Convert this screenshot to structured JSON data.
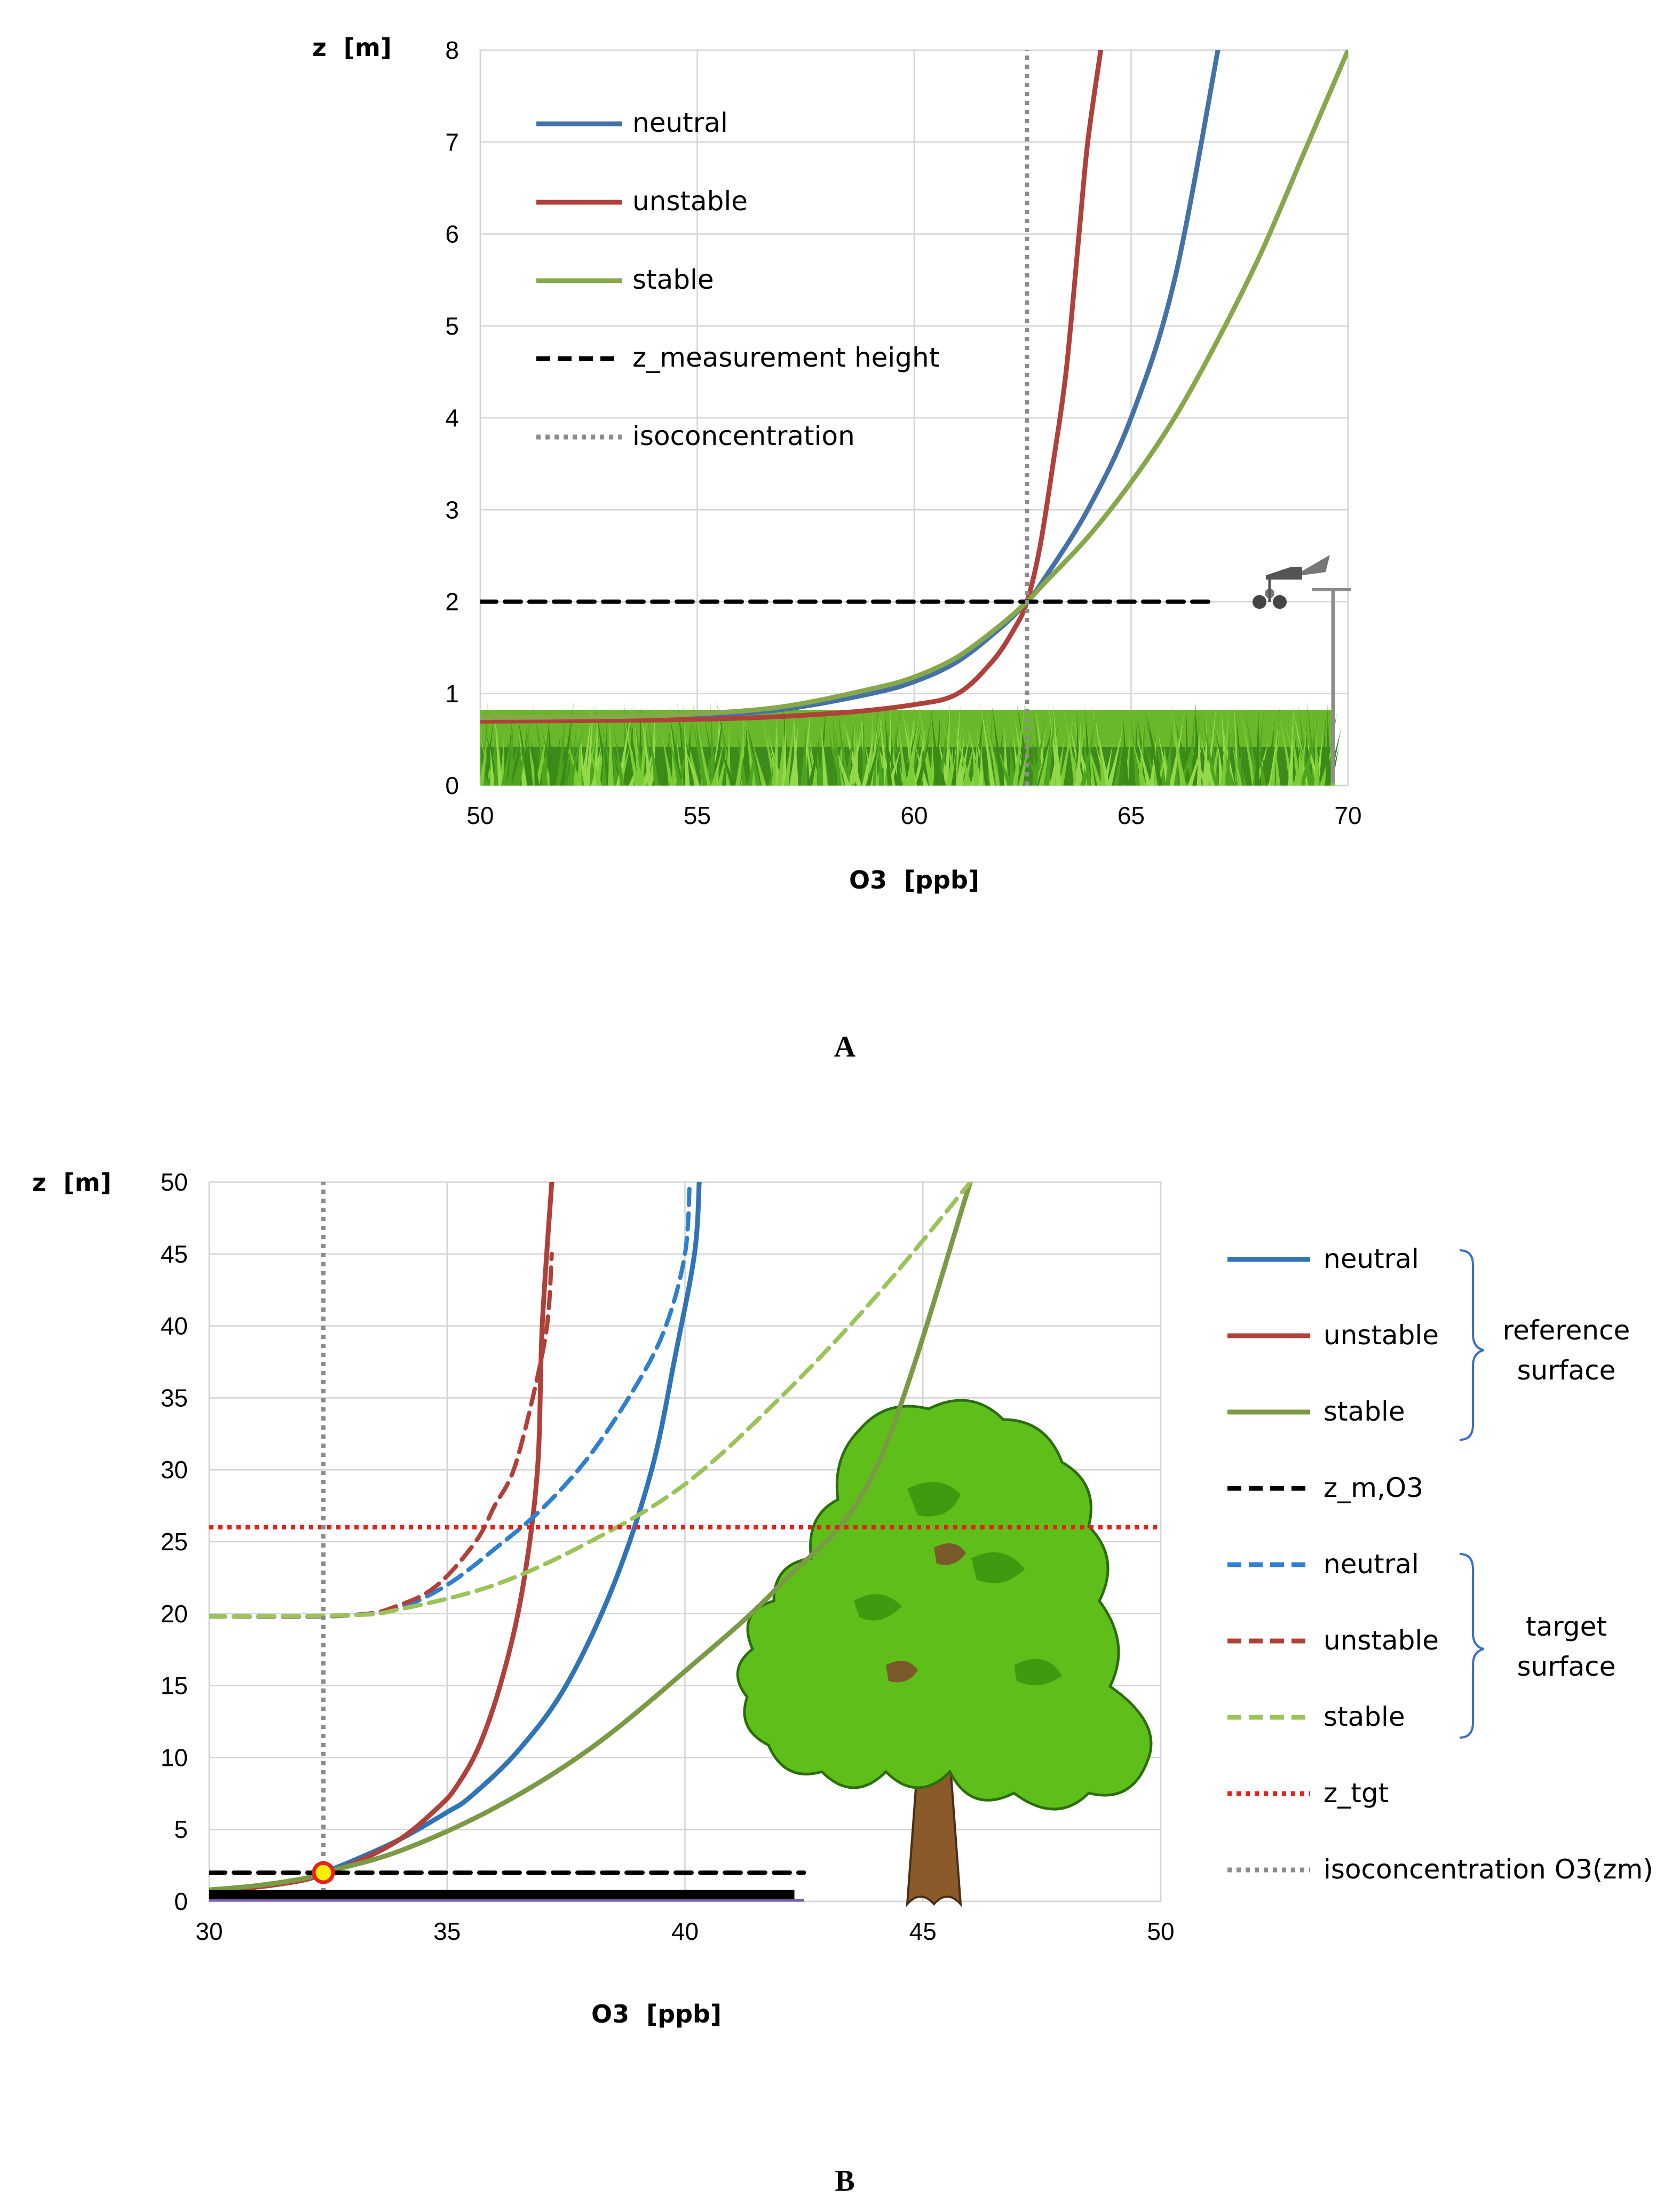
{
  "chart_data": [
    {
      "panel": "A",
      "type": "line",
      "xlabel": "O3  [ppb]",
      "ylabel": "z  [m]",
      "xlim": [
        50,
        70
      ],
      "ylim": [
        0,
        8
      ],
      "xticks": [
        "50",
        "55",
        "60",
        "65",
        "70"
      ],
      "yticks": [
        "0",
        "1",
        "2",
        "3",
        "4",
        "5",
        "6",
        "7",
        "8"
      ],
      "colors": {
        "neutral": "#4472a8",
        "unstable": "#b0403a",
        "stable": "#86a84a",
        "measurement": "#000000",
        "iso": "#8c8c8c"
      },
      "series": [
        {
          "name": "neutral",
          "style": "solid",
          "points": [
            [
              50,
              0.72
            ],
            [
              53,
              0.73
            ],
            [
              55,
              0.76
            ],
            [
              57,
              0.83
            ],
            [
              59,
              1.0
            ],
            [
              60,
              1.13
            ],
            [
              61,
              1.35
            ],
            [
              62,
              1.72
            ],
            [
              62.6,
              2.0
            ],
            [
              63,
              2.25
            ],
            [
              64,
              3.0
            ],
            [
              65,
              4.0
            ],
            [
              66,
              5.5
            ],
            [
              67,
              8.0
            ]
          ]
        },
        {
          "name": "unstable",
          "style": "solid",
          "points": [
            [
              50,
              0.7
            ],
            [
              55,
              0.72
            ],
            [
              58,
              0.78
            ],
            [
              60,
              0.88
            ],
            [
              61,
              1.0
            ],
            [
              61.8,
              1.35
            ],
            [
              62.3,
              1.7
            ],
            [
              62.6,
              2.0
            ],
            [
              62.9,
              2.6
            ],
            [
              63.2,
              3.5
            ],
            [
              63.5,
              4.5
            ],
            [
              63.8,
              6.0
            ],
            [
              64.0,
              7.0
            ],
            [
              64.3,
              8.0
            ]
          ]
        },
        {
          "name": "stable",
          "style": "solid",
          "points": [
            [
              50,
              0.74
            ],
            [
              53,
              0.75
            ],
            [
              55,
              0.78
            ],
            [
              57,
              0.86
            ],
            [
              59,
              1.05
            ],
            [
              60,
              1.18
            ],
            [
              61,
              1.4
            ],
            [
              62,
              1.75
            ],
            [
              62.6,
              2.0
            ],
            [
              63,
              2.2
            ],
            [
              64,
              2.7
            ],
            [
              65,
              3.3
            ],
            [
              66,
              4.0
            ],
            [
              67,
              4.85
            ],
            [
              68,
              5.8
            ],
            [
              69,
              6.9
            ],
            [
              70,
              8.0
            ]
          ]
        },
        {
          "name": "z_measurement height",
          "style": "dashed",
          "points": [
            [
              50,
              2
            ],
            [
              66.8,
              2
            ]
          ]
        },
        {
          "name": "isoconcentration",
          "style": "dotted",
          "points": [
            [
              62.6,
              0
            ],
            [
              62.6,
              8
            ]
          ]
        }
      ],
      "legend": [
        "neutral",
        "unstable",
        "stable",
        "z_measurement height",
        "isoconcentration"
      ]
    },
    {
      "panel": "B",
      "type": "line",
      "xlabel": "O3  [ppb]",
      "ylabel": "z  [m]",
      "xlim": [
        30,
        50
      ],
      "ylim": [
        0,
        50
      ],
      "xticks": [
        "30",
        "35",
        "40",
        "45",
        "50"
      ],
      "yticks": [
        "0",
        "5",
        "10",
        "15",
        "20",
        "25",
        "30",
        "35",
        "40",
        "45",
        "50"
      ],
      "colors": {
        "neutral_ref": "#2f74b5",
        "unstable_ref": "#b0403a",
        "stable_ref": "#7a9a45",
        "neutral_tgt": "#2f7fd0",
        "unstable_tgt": "#b0403a",
        "stable_tgt": "#9bc35a",
        "zm": "#000000",
        "ztgt": "#e8201a",
        "iso": "#8c8c8c",
        "marker_fill": "#ffee00",
        "marker_edge": "#e8201a"
      },
      "series": [
        {
          "name": "neutral",
          "group": "reference surface",
          "style": "solid",
          "points": [
            [
              30,
              0.8
            ],
            [
              31,
              1.0
            ],
            [
              32,
              1.5
            ],
            [
              32.4,
              2.0
            ],
            [
              33,
              2.8
            ],
            [
              34,
              4.3
            ],
            [
              35,
              6.2
            ],
            [
              35.5,
              7.3
            ],
            [
              36.5,
              10.5
            ],
            [
              37.5,
              15
            ],
            [
              38.5,
              22
            ],
            [
              39.3,
              30
            ],
            [
              39.8,
              38
            ],
            [
              40.2,
              45
            ],
            [
              40.3,
              50
            ]
          ]
        },
        {
          "name": "unstable",
          "group": "reference surface",
          "style": "solid",
          "points": [
            [
              30,
              0.8
            ],
            [
              31,
              1.0
            ],
            [
              32,
              1.5
            ],
            [
              32.4,
              2.0
            ],
            [
              33,
              2.6
            ],
            [
              34,
              4.3
            ],
            [
              34.8,
              6.5
            ],
            [
              35.2,
              8.0
            ],
            [
              35.7,
              11
            ],
            [
              36.2,
              16
            ],
            [
              36.6,
              22
            ],
            [
              36.9,
              30
            ],
            [
              37.0,
              40
            ],
            [
              37.2,
              50
            ]
          ]
        },
        {
          "name": "stable",
          "group": "reference surface",
          "style": "solid",
          "points": [
            [
              30,
              0.8
            ],
            [
              31,
              1.1
            ],
            [
              32,
              1.6
            ],
            [
              32.4,
              2.0
            ],
            [
              34,
              3.5
            ],
            [
              36,
              6.5
            ],
            [
              38,
              10.6
            ],
            [
              40,
              16
            ],
            [
              42,
              22
            ],
            [
              44,
              30
            ],
            [
              46,
              50
            ]
          ]
        },
        {
          "name": "z_m,O3",
          "style": "dashed",
          "points": [
            [
              30,
              2
            ],
            [
              42.5,
              2
            ]
          ]
        },
        {
          "name": "neutral",
          "group": "target surface",
          "style": "dashed",
          "points": [
            [
              30,
              19.8
            ],
            [
              32,
              19.8
            ],
            [
              33,
              19.9
            ],
            [
              34,
              20.4
            ],
            [
              35,
              22
            ],
            [
              36,
              24.5
            ],
            [
              37,
              27.3
            ],
            [
              38,
              31
            ],
            [
              39,
              36
            ],
            [
              39.6,
              40
            ],
            [
              40,
              45
            ],
            [
              40.1,
              50
            ]
          ]
        },
        {
          "name": "unstable",
          "group": "target surface",
          "style": "dashed",
          "points": [
            [
              30,
              19.8
            ],
            [
              33,
              19.9
            ],
            [
              34,
              20.6
            ],
            [
              34.8,
              22
            ],
            [
              35.6,
              25
            ],
            [
              36,
              27.5
            ],
            [
              36.4,
              30
            ],
            [
              36.8,
              35
            ],
            [
              37.1,
              40
            ],
            [
              37.2,
              45
            ]
          ]
        },
        {
          "name": "stable",
          "group": "target surface",
          "style": "dashed",
          "points": [
            [
              30,
              19.8
            ],
            [
              33,
              19.9
            ],
            [
              34,
              20.3
            ],
            [
              36,
              22
            ],
            [
              38,
              25
            ],
            [
              40,
              29
            ],
            [
              42,
              35
            ],
            [
              44,
              42
            ],
            [
              46,
              50
            ]
          ]
        },
        {
          "name": "z_tgt",
          "style": "dotted",
          "points": [
            [
              30,
              26
            ],
            [
              50,
              26
            ]
          ]
        },
        {
          "name": "isoconcentration O3(zm)",
          "style": "dotted",
          "points": [
            [
              32.4,
              0
            ],
            [
              32.4,
              50
            ]
          ]
        }
      ],
      "marker": {
        "x": 32.4,
        "y": 2
      },
      "legend": [
        "neutral",
        "unstable",
        "stable",
        "z_m,O3",
        "neutral",
        "unstable",
        "stable",
        "z_tgt",
        "isoconcentration O3(zm)"
      ],
      "braces": [
        "reference surface",
        "target surface"
      ]
    }
  ],
  "panelA": {
    "title": "A",
    "ylabel": "z  [m]",
    "xlabel": "O3  [ppb]",
    "legend": {
      "neutral": "neutral",
      "unstable": "unstable",
      "stable": "stable",
      "measurement": "z_measurement height",
      "iso": "isoconcentration"
    }
  },
  "panelB": {
    "title": "B",
    "ylabel": "z  [m]",
    "xlabel": "O3  [ppb]",
    "legend": {
      "neutral_ref": "neutral",
      "unstable_ref": "unstable",
      "stable_ref": "stable",
      "zm": "z_m,O3",
      "neutral_tgt": "neutral",
      "unstable_tgt": "unstable",
      "stable_tgt": "stable",
      "ztgt": "z_tgt",
      "iso": "isoconcentration O3(zm)"
    },
    "brace_ref": [
      "reference",
      "surface"
    ],
    "brace_tgt": [
      "target",
      "surface"
    ]
  },
  "icons": {
    "grass": "grass-illustration",
    "anemometer": "anemometer-icon",
    "tree": "tree-illustration"
  }
}
